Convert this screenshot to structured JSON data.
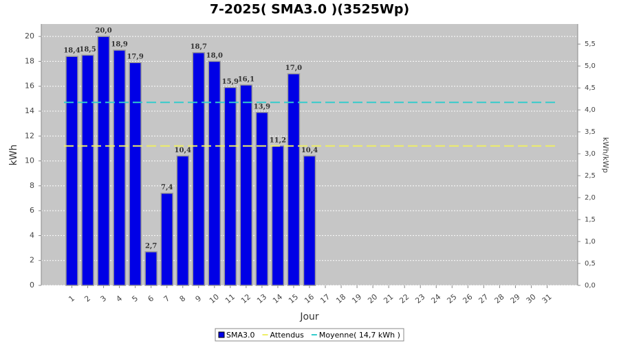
{
  "chart_data": {
    "type": "bar",
    "title": "7-2025( SMA3.0 )(3525Wp)",
    "x_label": "Jour",
    "y_label": "kWh",
    "y2_label": "kWh/kWp",
    "categories": [
      "1",
      "2",
      "3",
      "4",
      "5",
      "6",
      "7",
      "8",
      "9",
      "10",
      "11",
      "12",
      "13",
      "14",
      "15",
      "16",
      "17",
      "18",
      "19",
      "20",
      "21",
      "22",
      "23",
      "24",
      "25",
      "26",
      "27",
      "28",
      "29",
      "30",
      "31"
    ],
    "series": [
      {
        "name": "SMA3.0",
        "color": "#0000e6",
        "values": [
          18.4,
          18.5,
          20.0,
          18.9,
          17.9,
          2.7,
          7.4,
          10.4,
          18.7,
          18.0,
          15.9,
          16.1,
          13.9,
          11.2,
          17.0,
          10.4,
          0,
          0,
          0,
          0,
          0,
          0,
          0,
          0,
          0,
          0,
          0,
          0,
          0,
          0,
          0
        ],
        "value_labels": [
          "18,4",
          "18,5",
          "20,0",
          "18,9",
          "17,9",
          "2,7",
          "7,4",
          "10,4",
          "18,7",
          "18,0",
          "15,9",
          "16,1",
          "13,9",
          "11,2",
          "17,0",
          "10,4",
          null,
          null,
          null,
          null,
          null,
          null,
          null,
          null,
          null,
          null,
          null,
          null,
          null,
          null,
          null
        ]
      }
    ],
    "reference_lines": [
      {
        "name": "Attendus",
        "color": "#eeee66",
        "value": 11.2
      },
      {
        "name": "Moyenne( 14,7 kWh )",
        "color": "#33cccc",
        "value": 14.7
      }
    ],
    "ylim": [
      0,
      21
    ],
    "yticks": [
      0,
      2,
      4,
      6,
      8,
      10,
      12,
      14,
      16,
      18,
      20
    ],
    "y2lim": [
      0,
      5.957
    ],
    "y2ticks": [
      {
        "value": 0,
        "label": "0,0"
      },
      {
        "value": 0.5,
        "label": "0,5"
      },
      {
        "value": 1,
        "label": "1,0"
      },
      {
        "value": 1.5,
        "label": "1,5"
      },
      {
        "value": 2,
        "label": "2,0"
      },
      {
        "value": 2.5,
        "label": "2,5"
      },
      {
        "value": 3,
        "label": "3,0"
      },
      {
        "value": 3.5,
        "label": "3,5"
      },
      {
        "value": 4,
        "label": "4,0"
      },
      {
        "value": 4.5,
        "label": "4,5"
      },
      {
        "value": 5,
        "label": "5,0"
      },
      {
        "value": 5.5,
        "label": "5,5"
      }
    ],
    "grid": true
  }
}
